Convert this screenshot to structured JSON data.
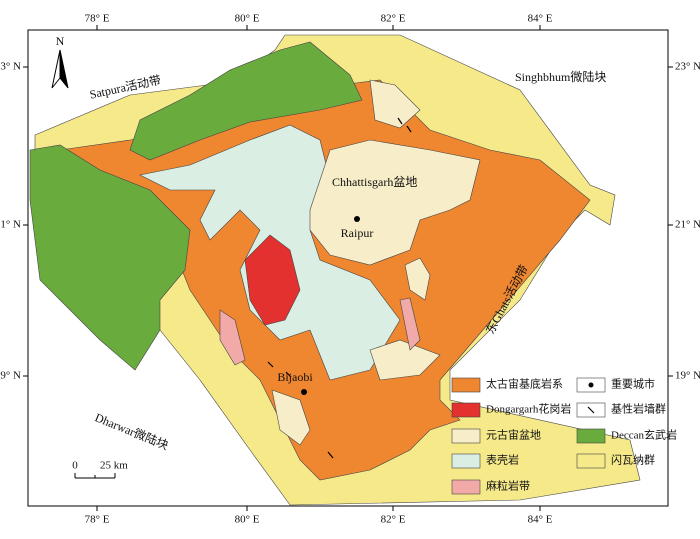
{
  "map": {
    "longitude_labels": [
      "78° E",
      "80° E",
      "82° E",
      "84° E"
    ],
    "latitude_labels": [
      "23° N",
      "21° N",
      "19° N"
    ],
    "north": "N",
    "regions": {
      "satpura": "Satpura活动带",
      "singhbhum": "Singhbhum微陆块",
      "chhattisgarh": "Chhattisgarh盆地",
      "eastern_ghats": "东Ghats活动带",
      "dharwar": "Dharwar微陆块"
    },
    "cities": [
      "Raipur",
      "Bijaobi"
    ],
    "scale": {
      "zero": "0",
      "distance": "25 km"
    },
    "legend": [
      "太古宙基底岩系",
      "Dongargarh花岗岩",
      "元古宙盆地",
      "表壳岩",
      "麻粒岩带",
      "重要城市",
      "基性岩墙群",
      "Deccan玄武岩",
      "闪瓦纳群"
    ]
  }
}
